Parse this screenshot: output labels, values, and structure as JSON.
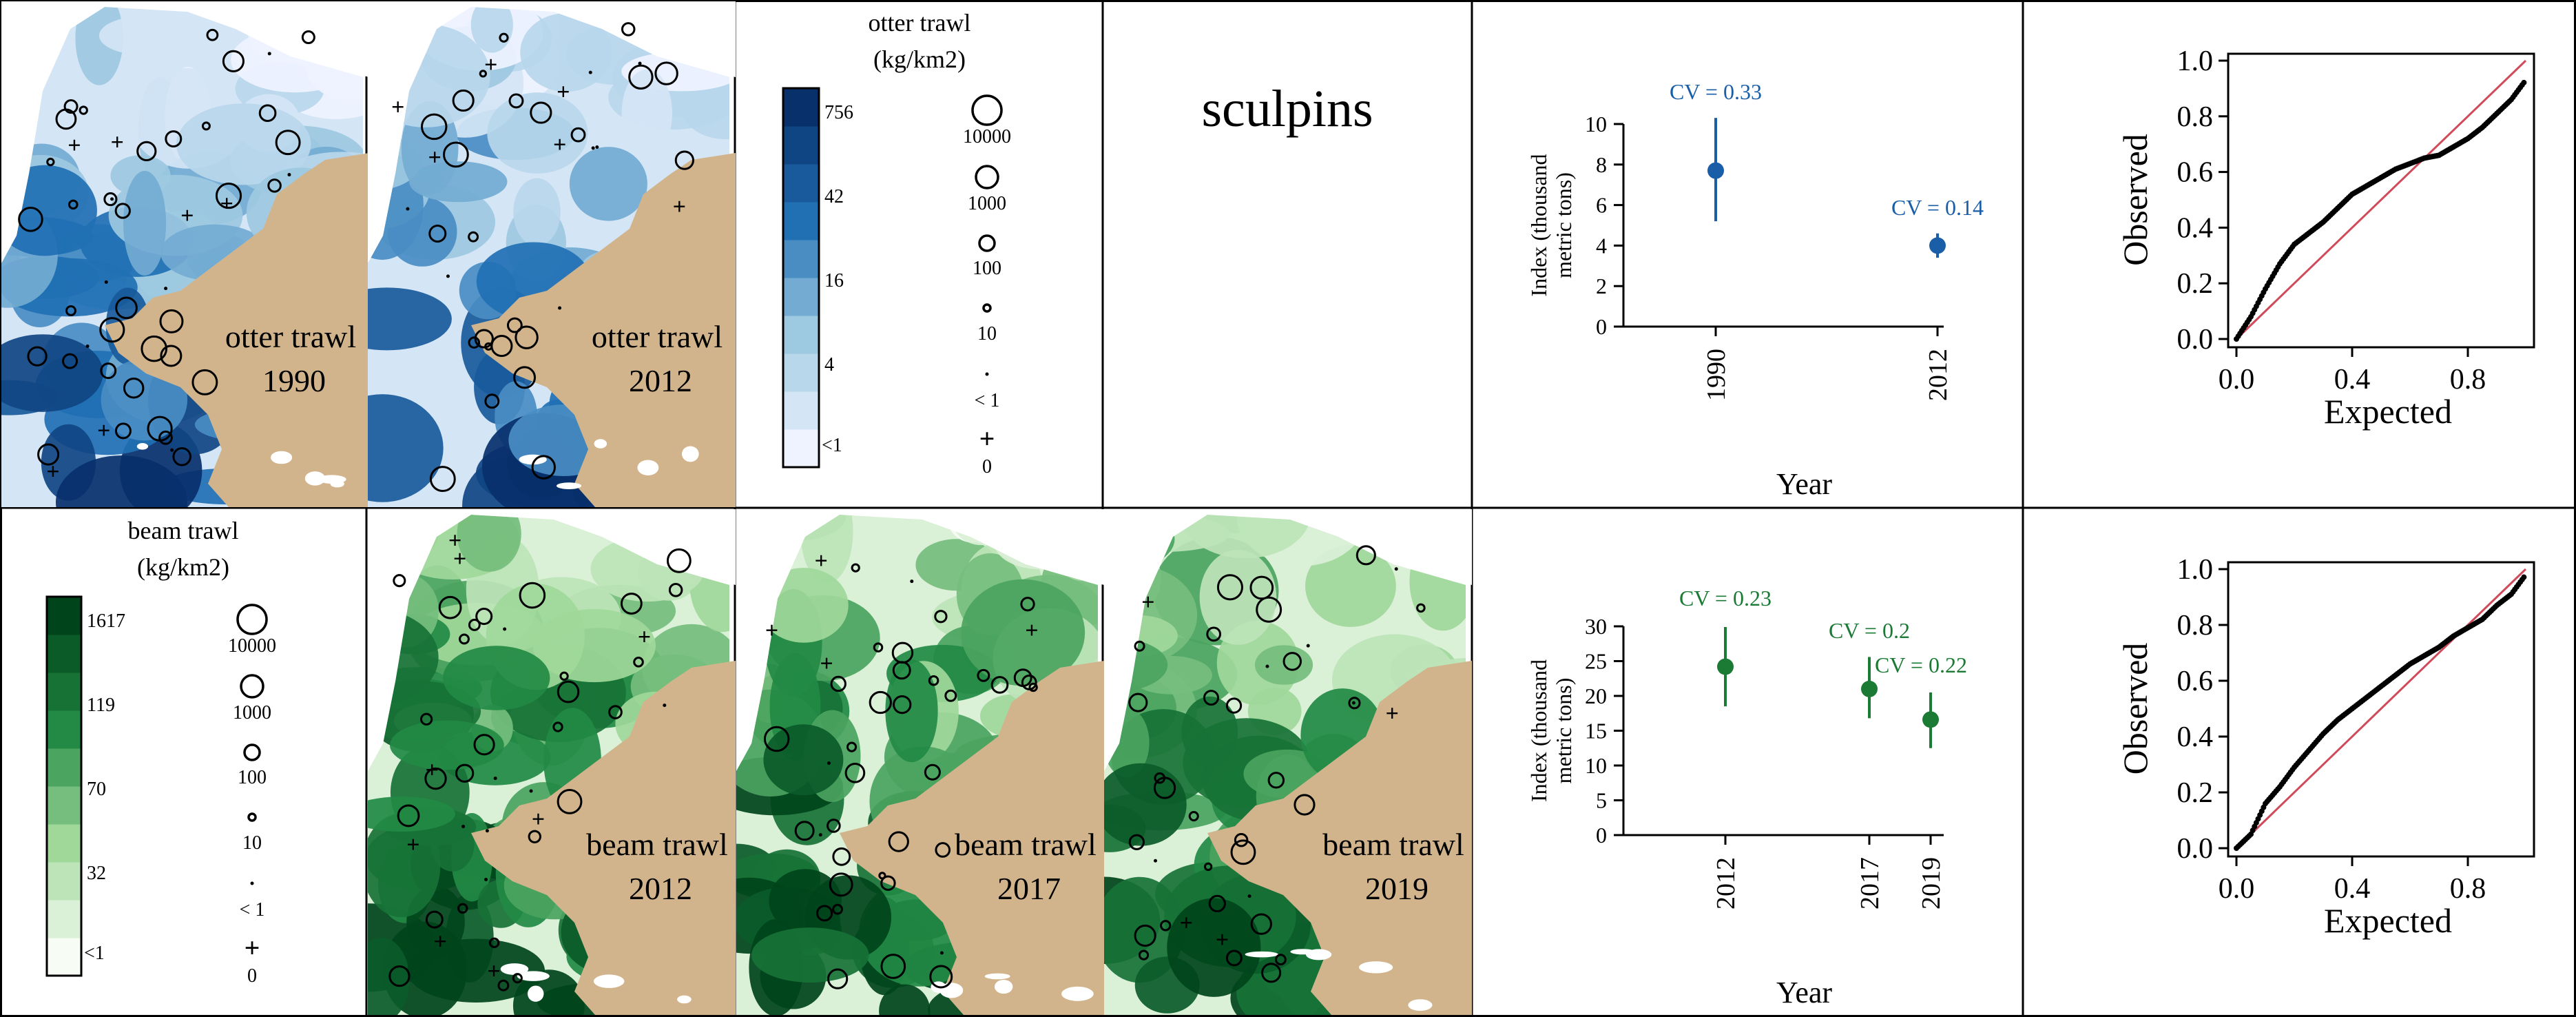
{
  "colors": {
    "blue_dark": "#08306b",
    "blue_mid": "#2171b5",
    "blue_light": "#9ecae1",
    "blue_pale": "#eff3ff",
    "green_dark": "#00441b",
    "green_mid": "#238b45",
    "green_light": "#a1d99b",
    "green_pale": "#f7fcf5",
    "land": "#d2b48c",
    "point_blue": "#1a5ea8",
    "point_green": "#1b7a34",
    "qq_line": "#d04a5a"
  },
  "species_label": "sculpins",
  "otter": {
    "legend": {
      "title1": "otter trawl",
      "title2": "(kg/km2)",
      "breaks": [
        "756",
        "42",
        "16",
        "4",
        "<1"
      ],
      "sizes": [
        "10000",
        "1000",
        "100",
        "10",
        "< 1",
        "0"
      ]
    },
    "maps": [
      {
        "label": "otter trawl",
        "year": "1990"
      },
      {
        "label": "otter trawl",
        "year": "2012"
      }
    ]
  },
  "beam": {
    "legend": {
      "title1": "beam trawl",
      "title2": "(kg/km2)",
      "breaks": [
        "1617",
        "119",
        "70",
        "32",
        "<1"
      ],
      "sizes": [
        "10000",
        "1000",
        "100",
        "10",
        "< 1",
        "0"
      ]
    },
    "maps": [
      {
        "label": "beam trawl",
        "year": "2012"
      },
      {
        "label": "beam trawl",
        "year": "2017"
      },
      {
        "label": "beam trawl",
        "year": "2019"
      }
    ]
  },
  "chart_data": [
    {
      "type": "scatter",
      "subtype": "point-with-error-bars",
      "xlabel": "Year",
      "ylabel": "Index (thousand metric tons)",
      "x": [
        "1990",
        "2012"
      ],
      "values": [
        7.7,
        4.0
      ],
      "lower": [
        5.2,
        3.4
      ],
      "upper": [
        10.3,
        4.6
      ],
      "cv_labels": [
        "CV = 0.33",
        "CV = 0.14"
      ],
      "ylim": [
        0,
        10
      ],
      "yticks": [
        "0",
        "2",
        "4",
        "6",
        "8",
        "10"
      ]
    },
    {
      "type": "scatter",
      "subtype": "qq",
      "xlabel": "Expected",
      "ylabel": "Observed",
      "xticks": [
        "0.0",
        "0.4",
        "0.8"
      ],
      "yticks": [
        "0.0",
        "0.2",
        "0.4",
        "0.6",
        "0.8",
        "1.0"
      ],
      "xlim": [
        0,
        1
      ],
      "ylim": [
        0,
        1
      ],
      "reference_line": "1:1",
      "curve": [
        [
          0.0,
          0.0
        ],
        [
          0.05,
          0.08
        ],
        [
          0.1,
          0.18
        ],
        [
          0.15,
          0.27
        ],
        [
          0.2,
          0.34
        ],
        [
          0.25,
          0.38
        ],
        [
          0.3,
          0.42
        ],
        [
          0.35,
          0.47
        ],
        [
          0.4,
          0.52
        ],
        [
          0.45,
          0.55
        ],
        [
          0.5,
          0.58
        ],
        [
          0.55,
          0.61
        ],
        [
          0.6,
          0.63
        ],
        [
          0.65,
          0.65
        ],
        [
          0.7,
          0.66
        ],
        [
          0.75,
          0.69
        ],
        [
          0.8,
          0.72
        ],
        [
          0.85,
          0.76
        ],
        [
          0.9,
          0.81
        ],
        [
          0.95,
          0.86
        ],
        [
          1.0,
          0.93
        ]
      ]
    },
    {
      "type": "scatter",
      "subtype": "point-with-error-bars",
      "xlabel": "Year",
      "ylabel": "Index (thousand metric tons)",
      "x": [
        "2012",
        "2017",
        "2019"
      ],
      "values": [
        24.2,
        21.0,
        16.6
      ],
      "lower": [
        18.5,
        16.8,
        12.5
      ],
      "upper": [
        29.9,
        25.6,
        20.5
      ],
      "cv_labels": [
        "CV = 0.23",
        "CV = 0.2",
        "CV = 0.22"
      ],
      "ylim": [
        0,
        30
      ],
      "yticks": [
        "0",
        "5",
        "10",
        "15",
        "20",
        "25",
        "30"
      ]
    },
    {
      "type": "scatter",
      "subtype": "qq",
      "xlabel": "Expected",
      "ylabel": "Observed",
      "xticks": [
        "0.0",
        "0.4",
        "0.8"
      ],
      "yticks": [
        "0.0",
        "0.2",
        "0.4",
        "0.6",
        "0.8",
        "1.0"
      ],
      "xlim": [
        0,
        1
      ],
      "ylim": [
        0,
        1
      ],
      "reference_line": "1:1",
      "curve": [
        [
          0.0,
          0.0
        ],
        [
          0.05,
          0.05
        ],
        [
          0.1,
          0.16
        ],
        [
          0.15,
          0.22
        ],
        [
          0.2,
          0.29
        ],
        [
          0.25,
          0.35
        ],
        [
          0.3,
          0.41
        ],
        [
          0.35,
          0.46
        ],
        [
          0.4,
          0.5
        ],
        [
          0.45,
          0.54
        ],
        [
          0.5,
          0.58
        ],
        [
          0.55,
          0.62
        ],
        [
          0.6,
          0.66
        ],
        [
          0.65,
          0.69
        ],
        [
          0.7,
          0.72
        ],
        [
          0.75,
          0.76
        ],
        [
          0.8,
          0.79
        ],
        [
          0.85,
          0.82
        ],
        [
          0.9,
          0.87
        ],
        [
          0.95,
          0.91
        ],
        [
          1.0,
          0.98
        ]
      ]
    }
  ]
}
